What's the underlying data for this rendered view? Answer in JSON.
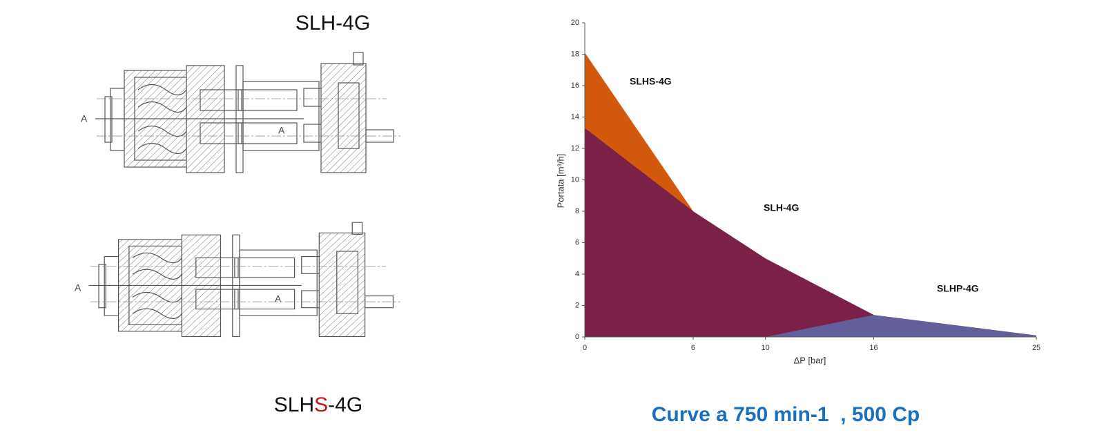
{
  "drawings": [
    {
      "label": [
        "SLH-4G"
      ],
      "section_marks": [
        "A",
        "A"
      ]
    },
    {
      "label": [
        "SLH",
        "S",
        "-4G"
      ],
      "section_marks": [
        "A",
        "A"
      ]
    }
  ],
  "chart_data": {
    "type": "area",
    "caption": "Curve a 750 min-1  , 500 Cp",
    "x_label": "ΔP [bar]",
    "y_label": "Portata [m³/h]",
    "xlim": [
      0,
      25
    ],
    "xticks": [
      0,
      6,
      10,
      16,
      25
    ],
    "ylim": [
      0,
      20
    ],
    "yticks": [
      0,
      2,
      4,
      6,
      8,
      10,
      12,
      14,
      16,
      18,
      20
    ],
    "series": [
      {
        "name": "SLHS-4G",
        "color": "#d35a0c",
        "x": [
          0,
          6
        ],
        "values": [
          18.1,
          8
        ]
      },
      {
        "name": "SLH-4G",
        "color": "#7b2046",
        "x": [
          0,
          6,
          10,
          16
        ],
        "values": [
          13.3,
          8,
          5,
          1.4
        ]
      },
      {
        "name": "SLHP-4G",
        "color": "#625f9a",
        "x": [
          10,
          16,
          25
        ],
        "values": [
          0,
          1.4,
          0.1
        ]
      }
    ]
  }
}
